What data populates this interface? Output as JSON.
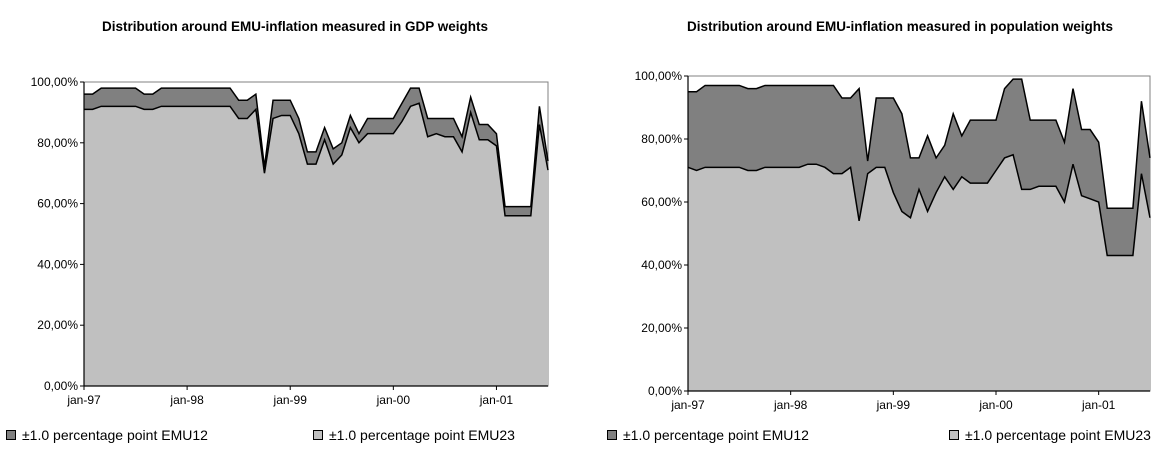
{
  "chart_data": [
    {
      "type": "area",
      "title": "Distribution around EMU-inflation measured in GDP weights",
      "xlabel": "",
      "ylabel": "",
      "x_ticks": [
        "jan-97",
        "jan-98",
        "jan-99",
        "jan-00",
        "jan-01"
      ],
      "y_ticks": [
        "0,00%",
        "20,00%",
        "40,00%",
        "60,00%",
        "80,00%",
        "100,00%"
      ],
      "ylim": [
        0,
        100
      ],
      "legend_position": "bottom",
      "series": [
        {
          "name": "±1.0 percentage point EMU12",
          "color": "#808080",
          "values": [
            96,
            96,
            98,
            98,
            98,
            98,
            98,
            96,
            96,
            98,
            98,
            98,
            98,
            98,
            98,
            98,
            98,
            98,
            94,
            94,
            96,
            72,
            94,
            94,
            94,
            88,
            77,
            77,
            85,
            78,
            80,
            89,
            83,
            88,
            88,
            88,
            88,
            93,
            98,
            98,
            88,
            88,
            88,
            88,
            82,
            95,
            86,
            86,
            83,
            59,
            59,
            59,
            59,
            92,
            74
          ]
        },
        {
          "name": "±1.0 percentage point EMU23",
          "color": "#c0c0c0",
          "values": [
            91,
            91,
            92,
            92,
            92,
            92,
            92,
            91,
            91,
            92,
            92,
            92,
            92,
            92,
            92,
            92,
            92,
            92,
            88,
            88,
            91,
            70,
            88,
            89,
            89,
            83,
            73,
            73,
            81,
            73,
            76,
            85,
            80,
            83,
            83,
            83,
            83,
            87,
            92,
            93,
            82,
            83,
            82,
            82,
            77,
            90,
            81,
            81,
            79,
            56,
            56,
            56,
            56,
            86,
            71
          ]
        }
      ]
    },
    {
      "type": "area",
      "title": "Distribution around EMU-inflation measured in population weights",
      "xlabel": "",
      "ylabel": "",
      "x_ticks": [
        "jan-97",
        "jan-98",
        "jan-99",
        "jan-00",
        "jan-01"
      ],
      "y_ticks": [
        "0,00%",
        "20,00%",
        "40,00%",
        "60,00%",
        "80,00%",
        "100,00%"
      ],
      "ylim": [
        0,
        100
      ],
      "legend_position": "bottom",
      "series": [
        {
          "name": "±1.0 percentage point EMU12",
          "color": "#808080",
          "values": [
            95,
            95,
            97,
            97,
            97,
            97,
            97,
            96,
            96,
            97,
            97,
            97,
            97,
            97,
            97,
            97,
            97,
            97,
            93,
            93,
            96,
            73,
            93,
            93,
            93,
            88,
            74,
            74,
            81,
            74,
            78,
            88,
            81,
            86,
            86,
            86,
            86,
            96,
            99,
            99,
            86,
            86,
            86,
            86,
            79,
            96,
            83,
            83,
            79,
            58,
            58,
            58,
            58,
            92,
            74
          ]
        },
        {
          "name": "±1.0 percentage point EMU23",
          "color": "#c0c0c0",
          "values": [
            71,
            70,
            71,
            71,
            71,
            71,
            71,
            70,
            70,
            71,
            71,
            71,
            71,
            71,
            72,
            72,
            71,
            69,
            69,
            71,
            54,
            69,
            71,
            71,
            63,
            57,
            55,
            64,
            57,
            63,
            68,
            64,
            68,
            66,
            66,
            66,
            70,
            74,
            75,
            64,
            64,
            65,
            65,
            65,
            60,
            72,
            62,
            61,
            60,
            43,
            43,
            43,
            43,
            69,
            55
          ]
        }
      ]
    }
  ]
}
